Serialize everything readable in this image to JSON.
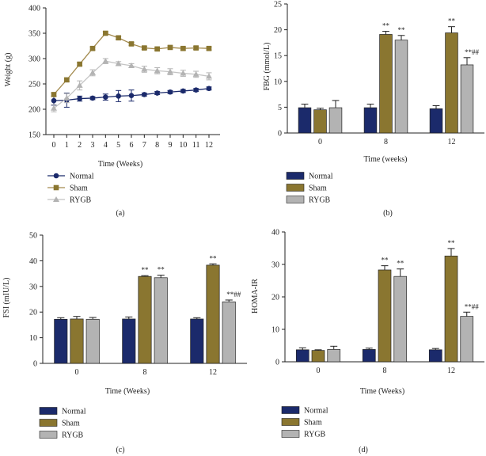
{
  "panel_labels": [
    "(a)",
    "(b)",
    "(c)",
    "(d)"
  ],
  "colors": {
    "normal": "#1b2a6b",
    "sham": "#8a7630",
    "sham_line": "#a38a4e",
    "rygb": "#b3b3b3",
    "rygb_line": "#c4c4c4",
    "axis": "#222222",
    "sig": "#444444"
  },
  "chart_data": [
    {
      "id": "a",
      "type": "line",
      "xlabel": "Time (Weeks)",
      "ylabel": "Weight (g)",
      "ylim": [
        150,
        400
      ],
      "yticks": [
        150,
        200,
        250,
        300,
        350,
        400
      ],
      "x": [
        0,
        1,
        2,
        3,
        4,
        5,
        6,
        7,
        8,
        9,
        10,
        11,
        12
      ],
      "legend": [
        "Normal",
        "Sham",
        "RYGB"
      ],
      "series": [
        {
          "name": "Normal",
          "marker": "circle",
          "values": [
            217,
            218,
            221,
            222,
            224,
            226,
            227,
            229,
            232,
            234,
            236,
            238,
            241
          ],
          "errors": [
            9,
            14,
            5,
            3,
            6,
            11,
            11,
            3,
            3,
            3,
            3,
            3,
            3
          ]
        },
        {
          "name": "Sham",
          "marker": "square",
          "values": [
            229,
            258,
            289,
            320,
            350,
            341,
            329,
            321,
            319,
            322,
            320,
            321,
            320
          ],
          "errors": [
            3,
            3,
            3,
            3,
            3,
            3,
            3,
            3,
            3,
            3,
            3,
            3,
            3
          ]
        },
        {
          "name": "RYGB",
          "marker": "triangle",
          "values": [
            202,
            222,
            247,
            272,
            295,
            290,
            286,
            279,
            276,
            274,
            271,
            269,
            265
          ],
          "errors": [
            7,
            9,
            9,
            6,
            5,
            4,
            4,
            6,
            6,
            6,
            6,
            6,
            7
          ]
        }
      ]
    },
    {
      "id": "b",
      "type": "bar",
      "xlabel": "Time (weeks)",
      "ylabel": "FBG (mmol/L)",
      "ylim": [
        0,
        25
      ],
      "yticks": [
        0,
        5,
        10,
        15,
        20,
        25
      ],
      "categories": [
        "0",
        "8",
        "12"
      ],
      "legend": [
        "Normal",
        "Sham",
        "RYGB"
      ],
      "series": [
        {
          "name": "Normal",
          "values": [
            4.9,
            4.9,
            4.7
          ],
          "errors": [
            0.7,
            0.7,
            0.6
          ]
        },
        {
          "name": "Sham",
          "values": [
            4.5,
            19.1,
            19.4
          ],
          "errors": [
            0.3,
            0.6,
            1.2
          ]
        },
        {
          "name": "RYGB",
          "values": [
            4.9,
            18.0,
            13.2
          ],
          "errors": [
            1.4,
            0.9,
            1.4
          ]
        }
      ],
      "annotations": [
        {
          "category": 1,
          "series": 1,
          "text": "**"
        },
        {
          "category": 1,
          "series": 2,
          "text": "**"
        },
        {
          "category": 2,
          "series": 1,
          "text": "**"
        },
        {
          "category": 2,
          "series": 2,
          "text": "**##"
        }
      ]
    },
    {
      "id": "c",
      "type": "bar",
      "xlabel": "Time (Weeks)",
      "ylabel": "FSI (mIU/L)",
      "ylim": [
        0,
        50
      ],
      "yticks": [
        0,
        10,
        20,
        30,
        40,
        50
      ],
      "categories": [
        "0",
        "8",
        "12"
      ],
      "legend": [
        "Normal",
        "Sham",
        "RYGB"
      ],
      "series": [
        {
          "name": "Normal",
          "values": [
            17.2,
            17.3,
            17.3
          ],
          "errors": [
            0.6,
            0.8,
            0.5
          ]
        },
        {
          "name": "Sham",
          "values": [
            17.3,
            33.9,
            38.3
          ],
          "errors": [
            1.0,
            0.3,
            0.5
          ]
        },
        {
          "name": "RYGB",
          "values": [
            17.2,
            33.4,
            24.0
          ],
          "errors": [
            0.7,
            1.0,
            0.7
          ]
        }
      ],
      "annotations": [
        {
          "category": 1,
          "series": 1,
          "text": "**"
        },
        {
          "category": 1,
          "series": 2,
          "text": "**"
        },
        {
          "category": 2,
          "series": 1,
          "text": "**"
        },
        {
          "category": 2,
          "series": 2,
          "text": "**##"
        }
      ]
    },
    {
      "id": "d",
      "type": "bar",
      "xlabel": "Time (Weeks)",
      "ylabel": "HOMA-IR",
      "ylim": [
        0,
        40
      ],
      "yticks": [
        0,
        10,
        20,
        30,
        40
      ],
      "categories": [
        "0",
        "8",
        "12"
      ],
      "legend": [
        "Normal",
        "Sham",
        "RYGB"
      ],
      "series": [
        {
          "name": "Normal",
          "values": [
            3.7,
            3.8,
            3.7
          ],
          "errors": [
            0.6,
            0.4,
            0.4
          ]
        },
        {
          "name": "Sham",
          "values": [
            3.5,
            28.3,
            32.6
          ],
          "errors": [
            0.2,
            1.3,
            2.3
          ]
        },
        {
          "name": "RYGB",
          "values": [
            3.8,
            26.3,
            14.0
          ],
          "errors": [
            1.0,
            2.3,
            1.3
          ]
        }
      ],
      "annotations": [
        {
          "category": 1,
          "series": 1,
          "text": "**"
        },
        {
          "category": 1,
          "series": 2,
          "text": "**"
        },
        {
          "category": 2,
          "series": 1,
          "text": "**"
        },
        {
          "category": 2,
          "series": 2,
          "text": "**##"
        }
      ]
    }
  ]
}
